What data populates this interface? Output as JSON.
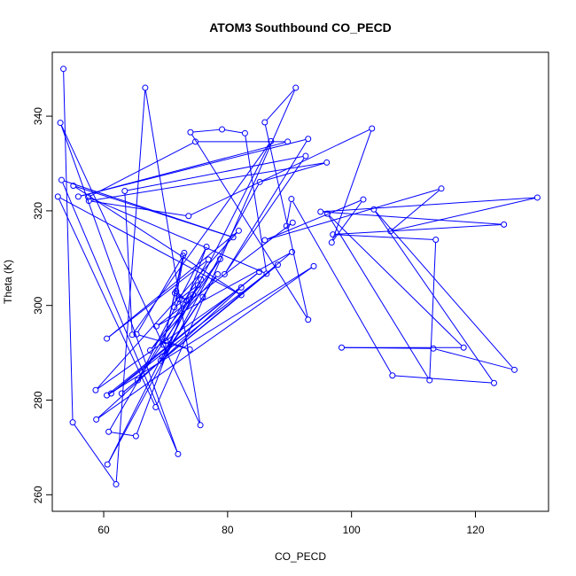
{
  "chart_data": {
    "type": "scatter",
    "title": "ATOM3 Southbound CO_PECD",
    "xlabel": "CO_PECD",
    "ylabel": "Theta (K)",
    "xlim": [
      51.7,
      131.8
    ],
    "ylim": [
      256.5,
      353.5
    ],
    "x_ticks": [
      60,
      80,
      100,
      120
    ],
    "y_ticks": [
      260,
      280,
      300,
      320,
      340
    ],
    "grid": false,
    "legend": "none",
    "style": {
      "mode": "points-and-lines",
      "marker": "open-circle",
      "color": "#0000ff"
    },
    "points": [
      {
        "x": 53.5,
        "y": 350.0
      },
      {
        "x": 55.0,
        "y": 275.3
      },
      {
        "x": 62.0,
        "y": 262.2
      },
      {
        "x": 66.7,
        "y": 346.0
      },
      {
        "x": 75.6,
        "y": 274.7
      },
      {
        "x": 53.0,
        "y": 338.6
      },
      {
        "x": 72.0,
        "y": 268.6
      },
      {
        "x": 53.2,
        "y": 326.5
      },
      {
        "x": 80.9,
        "y": 314.4
      },
      {
        "x": 55.1,
        "y": 325.3
      },
      {
        "x": 82.2,
        "y": 302.2
      },
      {
        "x": 52.6,
        "y": 323.0
      },
      {
        "x": 68.4,
        "y": 278.5
      },
      {
        "x": 91.0,
        "y": 346.0
      },
      {
        "x": 86.0,
        "y": 338.7
      },
      {
        "x": 93.0,
        "y": 297.0
      },
      {
        "x": 74.0,
        "y": 336.6
      },
      {
        "x": 79.1,
        "y": 337.2
      },
      {
        "x": 82.8,
        "y": 336.4
      },
      {
        "x": 86.3,
        "y": 306.7
      },
      {
        "x": 57.5,
        "y": 322.9
      },
      {
        "x": 74.8,
        "y": 334.6
      },
      {
        "x": 89.7,
        "y": 334.6
      },
      {
        "x": 55.9,
        "y": 323.0
      },
      {
        "x": 93.0,
        "y": 335.2
      },
      {
        "x": 79.5,
        "y": 306.6
      },
      {
        "x": 92.6,
        "y": 331.6
      },
      {
        "x": 63.4,
        "y": 324.2
      },
      {
        "x": 64.6,
        "y": 293.8
      },
      {
        "x": 87.0,
        "y": 334.7
      },
      {
        "x": 60.6,
        "y": 266.4
      },
      {
        "x": 85.2,
        "y": 326.1
      },
      {
        "x": 96.0,
        "y": 330.2
      },
      {
        "x": 57.6,
        "y": 322.1
      },
      {
        "x": 73.7,
        "y": 318.9
      },
      {
        "x": 103.3,
        "y": 337.4
      },
      {
        "x": 96.8,
        "y": 313.3
      },
      {
        "x": 101.9,
        "y": 322.4
      },
      {
        "x": 86.0,
        "y": 313.8
      },
      {
        "x": 114.5,
        "y": 324.7
      },
      {
        "x": 106.3,
        "y": 315.7
      },
      {
        "x": 130.0,
        "y": 322.8
      },
      {
        "x": 95.0,
        "y": 319.8
      },
      {
        "x": 124.6,
        "y": 317.1
      },
      {
        "x": 97.0,
        "y": 315.0
      },
      {
        "x": 113.6,
        "y": 313.9
      },
      {
        "x": 112.6,
        "y": 284.2
      },
      {
        "x": 96.1,
        "y": 319.4
      },
      {
        "x": 118.1,
        "y": 291.1
      },
      {
        "x": 98.4,
        "y": 291.1
      },
      {
        "x": 113.2,
        "y": 290.9
      },
      {
        "x": 126.3,
        "y": 286.4
      },
      {
        "x": 103.6,
        "y": 320.3
      },
      {
        "x": 123.0,
        "y": 283.6
      },
      {
        "x": 106.6,
        "y": 285.2
      },
      {
        "x": 90.3,
        "y": 322.5
      },
      {
        "x": 89.5,
        "y": 316.8
      },
      {
        "x": 90.5,
        "y": 317.5
      },
      {
        "x": 68.5,
        "y": 295.6
      },
      {
        "x": 90.4,
        "y": 311.3
      },
      {
        "x": 62.9,
        "y": 281.4
      },
      {
        "x": 88.1,
        "y": 308.6
      },
      {
        "x": 61.2,
        "y": 281.4
      },
      {
        "x": 85.1,
        "y": 307.1
      },
      {
        "x": 60.5,
        "y": 281.0
      },
      {
        "x": 93.9,
        "y": 308.3
      },
      {
        "x": 58.8,
        "y": 275.9
      },
      {
        "x": 82.2,
        "y": 303.8
      },
      {
        "x": 58.7,
        "y": 282.1
      },
      {
        "x": 81.8,
        "y": 315.8
      },
      {
        "x": 60.5,
        "y": 293.0
      },
      {
        "x": 76.9,
        "y": 309.7
      },
      {
        "x": 60.8,
        "y": 273.3
      },
      {
        "x": 65.2,
        "y": 272.4
      },
      {
        "x": 76.6,
        "y": 312.4
      },
      {
        "x": 65.5,
        "y": 284.2
      },
      {
        "x": 78.8,
        "y": 309.8
      },
      {
        "x": 67.5,
        "y": 290.5
      },
      {
        "x": 78.4,
        "y": 306.6
      },
      {
        "x": 69.2,
        "y": 288.3
      },
      {
        "x": 76.0,
        "y": 301.8
      },
      {
        "x": 69.5,
        "y": 289.2
      },
      {
        "x": 75.7,
        "y": 305.5
      },
      {
        "x": 70.0,
        "y": 292.5
      },
      {
        "x": 73.9,
        "y": 290.7
      },
      {
        "x": 65.3,
        "y": 293.9
      },
      {
        "x": 72.8,
        "y": 310.5
      },
      {
        "x": 69.6,
        "y": 291.7
      },
      {
        "x": 73.0,
        "y": 311.1
      },
      {
        "x": 71.4,
        "y": 299.6
      },
      {
        "x": 74.4,
        "y": 302.3
      },
      {
        "x": 75.2,
        "y": 304.3
      },
      {
        "x": 72.2,
        "y": 301.3
      },
      {
        "x": 71.5,
        "y": 302.6
      },
      {
        "x": 73.4,
        "y": 301.0
      },
      {
        "x": 71.7,
        "y": 303.0
      }
    ]
  }
}
